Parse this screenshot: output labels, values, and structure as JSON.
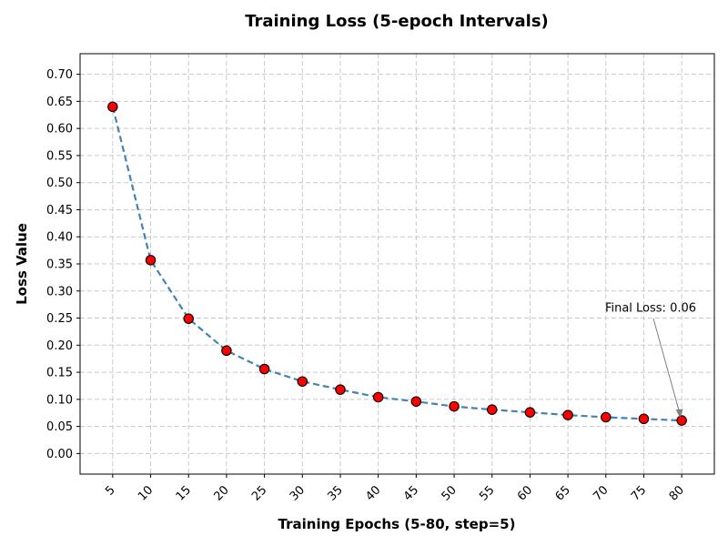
{
  "chart_data": {
    "type": "line",
    "title": "Training Loss (5-epoch Intervals)",
    "xlabel": "Training Epochs (5-80, step=5)",
    "ylabel": "Loss Value",
    "x": [
      5,
      10,
      15,
      20,
      25,
      30,
      35,
      40,
      45,
      50,
      55,
      60,
      65,
      70,
      75,
      80
    ],
    "x_tick_labels": [
      "5",
      "10",
      "15",
      "20",
      "25",
      "30",
      "35",
      "40",
      "45",
      "50",
      "55",
      "60",
      "65",
      "70",
      "75",
      "80"
    ],
    "series": [
      {
        "values": [
          0.64,
          0.357,
          0.249,
          0.19,
          0.156,
          0.133,
          0.118,
          0.104,
          0.096,
          0.087,
          0.081,
          0.076,
          0.071,
          0.067,
          0.064,
          0.061
        ]
      }
    ],
    "xlim": [
      0.7,
      84.3
    ],
    "ylim": [
      -0.038,
      0.738
    ],
    "y_ticks": [
      0.0,
      0.05,
      0.1,
      0.15,
      0.2,
      0.25,
      0.3,
      0.35,
      0.4,
      0.45,
      0.5,
      0.55,
      0.6,
      0.65,
      0.7
    ],
    "y_tick_labels": [
      "0.00",
      "0.05",
      "0.10",
      "0.15",
      "0.20",
      "0.25",
      "0.30",
      "0.35",
      "0.40",
      "0.45",
      "0.50",
      "0.55",
      "0.60",
      "0.65",
      "0.70"
    ],
    "grid": true,
    "line_style": "dashed",
    "line_color": "#4682b4",
    "marker_color": "#ff0000",
    "marker_edge_color": "#000000",
    "annotation": {
      "text": "Final Loss: 0.06",
      "target_x": 80,
      "target_y": 0.061
    }
  }
}
